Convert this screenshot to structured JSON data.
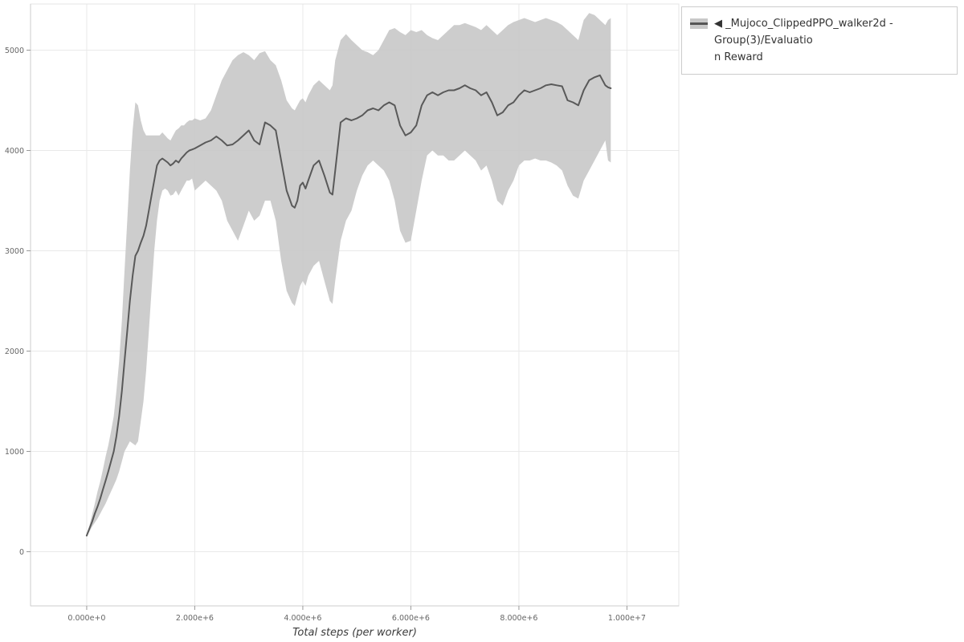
{
  "page": {
    "background": "#ffffff"
  },
  "legend": {
    "label_lines": [
      "◀ _Mujoco_ClippedPPO_walker2d - Group(3)/Evaluatio",
      "n Reward"
    ],
    "swatch_fill": "#c8c8c8",
    "swatch_line": "#555555"
  },
  "styles": {
    "grid_color": "#e9e9e9",
    "border_color": "#e4e4e4",
    "axis_color": "#cccccc",
    "tick_color": "#999999",
    "tick_text_color": "#666666",
    "axis_label_color": "#3b3b3b"
  },
  "chart_data": {
    "type": "line",
    "title": "",
    "xlabel": "Total steps (per worker)",
    "ylabel": "",
    "grid": true,
    "legend_position": "top-right",
    "x_unit": 1000000,
    "xlim": [
      -1.04,
      10.96
    ],
    "ylim": [
      -540,
      5460
    ],
    "x_ticks": [
      {
        "value": 0,
        "label": "0.000e+0"
      },
      {
        "value": 2,
        "label": "2.000e+6"
      },
      {
        "value": 4,
        "label": "4.000e+6"
      },
      {
        "value": 6,
        "label": "6.000e+6"
      },
      {
        "value": 8,
        "label": "8.000e+6"
      },
      {
        "value": 10,
        "label": "1.000e+7"
      }
    ],
    "y_ticks": [
      {
        "value": 0,
        "label": "0"
      },
      {
        "value": 1000,
        "label": "1000"
      },
      {
        "value": 2000,
        "label": "2000"
      },
      {
        "value": 3000,
        "label": "3000"
      },
      {
        "value": 4000,
        "label": "4000"
      },
      {
        "value": 5000,
        "label": "5000"
      }
    ],
    "series": [
      {
        "name": "_Mujoco_ClippedPPO_walker2d - Group(3)/Evaluation Reward",
        "type": "line_with_band",
        "color": "#595959",
        "line_width": 2,
        "band_color": "#c8c8c8",
        "band_opacity": 0.9,
        "x": [
          0.0,
          0.05,
          0.1,
          0.15,
          0.2,
          0.25,
          0.3,
          0.35,
          0.4,
          0.45,
          0.5,
          0.55,
          0.6,
          0.65,
          0.7,
          0.75,
          0.8,
          0.85,
          0.9,
          0.95,
          1.0,
          1.05,
          1.1,
          1.15,
          1.2,
          1.25,
          1.3,
          1.35,
          1.4,
          1.45,
          1.5,
          1.55,
          1.6,
          1.65,
          1.7,
          1.75,
          1.8,
          1.85,
          1.9,
          1.95,
          2.0,
          2.1,
          2.2,
          2.3,
          2.4,
          2.5,
          2.6,
          2.7,
          2.8,
          2.9,
          3.0,
          3.1,
          3.2,
          3.3,
          3.4,
          3.5,
          3.6,
          3.7,
          3.8,
          3.85,
          3.9,
          3.95,
          4.0,
          4.05,
          4.1,
          4.2,
          4.3,
          4.4,
          4.5,
          4.55,
          4.6,
          4.7,
          4.8,
          4.9,
          5.0,
          5.1,
          5.2,
          5.3,
          5.4,
          5.5,
          5.6,
          5.7,
          5.8,
          5.9,
          6.0,
          6.1,
          6.2,
          6.3,
          6.4,
          6.5,
          6.6,
          6.7,
          6.8,
          6.9,
          7.0,
          7.1,
          7.2,
          7.3,
          7.4,
          7.5,
          7.6,
          7.7,
          7.8,
          7.9,
          8.0,
          8.1,
          8.2,
          8.3,
          8.4,
          8.5,
          8.6,
          8.7,
          8.8,
          8.9,
          9.0,
          9.1,
          9.2,
          9.3,
          9.4,
          9.5,
          9.6,
          9.65,
          9.7
        ],
        "mean": [
          160,
          230,
          300,
          380,
          450,
          530,
          620,
          710,
          800,
          900,
          1000,
          1150,
          1350,
          1600,
          1900,
          2200,
          2500,
          2750,
          2950,
          3000,
          3080,
          3150,
          3250,
          3400,
          3550,
          3700,
          3850,
          3900,
          3920,
          3900,
          3880,
          3850,
          3870,
          3900,
          3880,
          3920,
          3950,
          3980,
          4000,
          4010,
          4020,
          4050,
          4080,
          4100,
          4140,
          4100,
          4050,
          4060,
          4100,
          4150,
          4200,
          4100,
          4060,
          4280,
          4250,
          4200,
          3900,
          3600,
          3450,
          3430,
          3500,
          3650,
          3680,
          3620,
          3700,
          3850,
          3900,
          3750,
          3580,
          3560,
          3800,
          4280,
          4320,
          4300,
          4320,
          4350,
          4400,
          4420,
          4400,
          4450,
          4480,
          4450,
          4250,
          4150,
          4180,
          4250,
          4450,
          4550,
          4580,
          4550,
          4580,
          4600,
          4600,
          4620,
          4650,
          4620,
          4600,
          4550,
          4580,
          4480,
          4350,
          4380,
          4450,
          4480,
          4550,
          4600,
          4580,
          4600,
          4620,
          4650,
          4660,
          4650,
          4640,
          4500,
          4480,
          4450,
          4600,
          4700,
          4730,
          4750,
          4650,
          4630,
          4620
        ],
        "lower": [
          150,
          200,
          250,
          290,
          330,
          380,
          430,
          480,
          540,
          600,
          660,
          720,
          800,
          900,
          1000,
          1050,
          1100,
          1080,
          1060,
          1100,
          1300,
          1500,
          1800,
          2200,
          2600,
          3000,
          3300,
          3500,
          3600,
          3620,
          3600,
          3550,
          3560,
          3600,
          3550,
          3600,
          3650,
          3700,
          3700,
          3720,
          3600,
          3650,
          3700,
          3650,
          3600,
          3500,
          3300,
          3200,
          3100,
          3250,
          3400,
          3300,
          3350,
          3500,
          3500,
          3300,
          2900,
          2600,
          2480,
          2450,
          2550,
          2650,
          2700,
          2650,
          2750,
          2850,
          2900,
          2700,
          2500,
          2470,
          2700,
          3100,
          3300,
          3400,
          3600,
          3750,
          3850,
          3900,
          3850,
          3800,
          3700,
          3500,
          3200,
          3080,
          3100,
          3400,
          3700,
          3950,
          4000,
          3950,
          3950,
          3900,
          3900,
          3950,
          4000,
          3950,
          3900,
          3800,
          3850,
          3700,
          3500,
          3450,
          3600,
          3700,
          3850,
          3900,
          3900,
          3920,
          3900,
          3900,
          3880,
          3850,
          3800,
          3650,
          3550,
          3520,
          3700,
          3800,
          3900,
          4000,
          4100,
          3900,
          3880
        ],
        "upper": [
          170,
          260,
          370,
          480,
          600,
          700,
          820,
          950,
          1060,
          1200,
          1350,
          1600,
          1900,
          2300,
          2800,
          3300,
          3800,
          4200,
          4480,
          4450,
          4300,
          4200,
          4150,
          4150,
          4150,
          4150,
          4150,
          4150,
          4180,
          4150,
          4120,
          4100,
          4150,
          4200,
          4220,
          4250,
          4250,
          4280,
          4300,
          4300,
          4320,
          4300,
          4320,
          4400,
          4550,
          4700,
          4800,
          4900,
          4950,
          4980,
          4950,
          4900,
          4970,
          4990,
          4900,
          4850,
          4700,
          4500,
          4420,
          4400,
          4450,
          4500,
          4520,
          4480,
          4550,
          4650,
          4700,
          4650,
          4600,
          4650,
          4900,
          5100,
          5160,
          5100,
          5050,
          5000,
          4980,
          4950,
          5000,
          5100,
          5200,
          5220,
          5180,
          5150,
          5200,
          5180,
          5200,
          5150,
          5120,
          5100,
          5150,
          5200,
          5250,
          5250,
          5270,
          5250,
          5230,
          5200,
          5250,
          5200,
          5150,
          5200,
          5250,
          5280,
          5300,
          5320,
          5300,
          5280,
          5300,
          5320,
          5300,
          5280,
          5250,
          5200,
          5150,
          5100,
          5300,
          5370,
          5350,
          5300,
          5250,
          5300,
          5320
        ]
      }
    ]
  }
}
